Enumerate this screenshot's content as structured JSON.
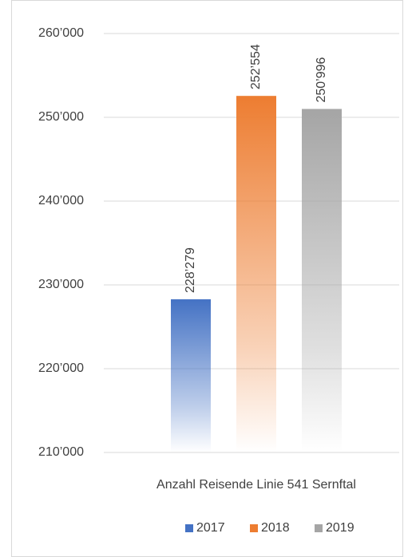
{
  "chart_data": {
    "type": "bar",
    "categories": [
      "Anzahl Reisende Linie 541 Sernftal"
    ],
    "series": [
      {
        "name": "2017",
        "color": "#4472c4",
        "values": [
          228279
        ],
        "value_labels": [
          "228’279"
        ]
      },
      {
        "name": "2018",
        "color": "#ed7d31",
        "values": [
          252554
        ],
        "value_labels": [
          "252’554"
        ]
      },
      {
        "name": "2019",
        "color": "#a5a5a5",
        "values": [
          250996
        ],
        "value_labels": [
          "250’996"
        ]
      }
    ],
    "ylim": [
      210000,
      260000
    ],
    "yticks": [
      {
        "value": 210000,
        "label": "210’000"
      },
      {
        "value": 220000,
        "label": "220’000"
      },
      {
        "value": 230000,
        "label": "230’000"
      },
      {
        "value": 240000,
        "label": "240’000"
      },
      {
        "value": 250000,
        "label": "250’000"
      },
      {
        "value": 260000,
        "label": "260’000"
      }
    ],
    "grid": true,
    "legend": "bottom"
  }
}
